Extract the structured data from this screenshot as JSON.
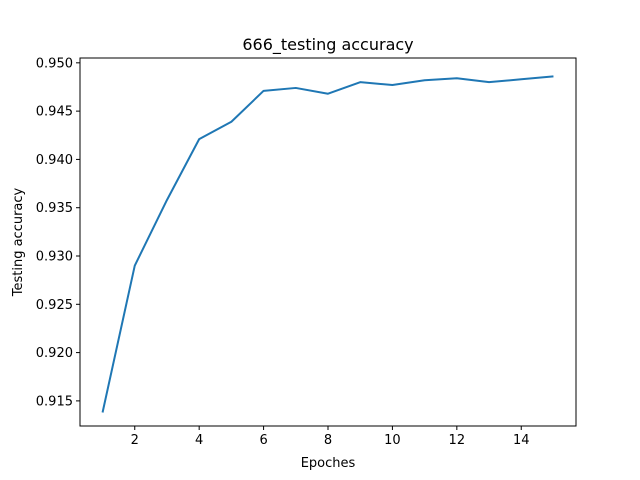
{
  "chart_data": {
    "type": "line",
    "title": "666_testing accuracy",
    "xlabel": "Epoches",
    "ylabel": "Testing accuracy",
    "x": [
      1,
      2,
      3,
      4,
      5,
      6,
      7,
      8,
      9,
      10,
      11,
      12,
      13,
      14,
      15
    ],
    "series": [
      {
        "values": [
          0.9138,
          0.929,
          0.9358,
          0.9421,
          0.9439,
          0.9471,
          0.9474,
          0.9468,
          0.948,
          0.9477,
          0.9482,
          0.9484,
          0.948,
          0.9483,
          0.9486
        ],
        "color": "#1f77b4"
      }
    ],
    "xlim": [
      0.3,
      15.7
    ],
    "ylim": [
      0.9124,
      0.9505
    ],
    "xticks": [
      2,
      4,
      6,
      8,
      10,
      12,
      14
    ],
    "xtick_labels": [
      "2",
      "4",
      "6",
      "8",
      "10",
      "12",
      "14"
    ],
    "yticks": [
      0.915,
      0.92,
      0.925,
      0.93,
      0.935,
      0.94,
      0.945,
      0.95
    ],
    "ytick_labels": [
      "0.915",
      "0.920",
      "0.925",
      "0.930",
      "0.935",
      "0.940",
      "0.945",
      "0.950"
    ],
    "grid": false,
    "legend": "none"
  }
}
